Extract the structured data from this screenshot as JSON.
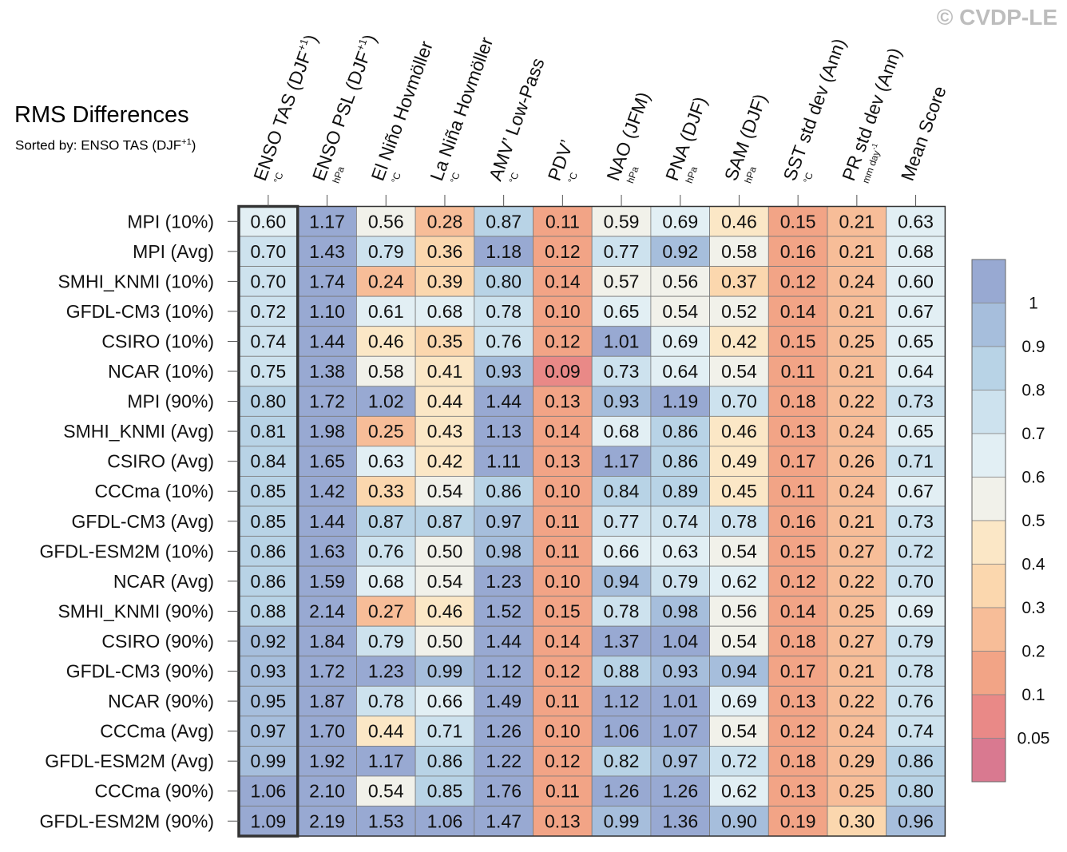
{
  "copyright": "© CVDP-LE",
  "title": "RMS Differences",
  "subtitle_prefix": "Sorted by: ENSO TAS (DJF",
  "subtitle_sup": "+1",
  "subtitle_suffix": ")",
  "chart_data": {
    "type": "heatmap",
    "title": "RMS Differences",
    "sorted_by": "ENSO TAS (DJF+1)",
    "columns": [
      {
        "label": "ENSO TAS (DJF",
        "sup": "+1",
        "close": ")",
        "unit": "°C"
      },
      {
        "label": "ENSO PSL (DJF",
        "sup": "+1",
        "close": ")",
        "unit": "hPa"
      },
      {
        "label": "El Niño Hovmöller",
        "unit": "°C"
      },
      {
        "label": "La Niña Hovmöller",
        "unit": "°C"
      },
      {
        "label": "AMV’ Low-Pass",
        "unit": "°C"
      },
      {
        "label": "PDV’",
        "unit": "°C"
      },
      {
        "label": "NAO (JFM)",
        "unit": "hPa"
      },
      {
        "label": "PNA (DJF)",
        "unit": "hPa"
      },
      {
        "label": "SAM (DJF)",
        "unit": "hPa"
      },
      {
        "label": "SST std dev (Ann)",
        "unit": "°C"
      },
      {
        "label": "PR std dev (Ann)",
        "unit": "mm day",
        "unit_sup": "-1"
      },
      {
        "label": "Mean Score",
        "unit": ""
      }
    ],
    "rows": [
      "MPI (10%)",
      "MPI (Avg)",
      "SMHI_KNMI (10%)",
      "GFDL-CM3 (10%)",
      "CSIRO (10%)",
      "NCAR (10%)",
      "MPI (90%)",
      "SMHI_KNMI (Avg)",
      "CSIRO (Avg)",
      "CCCma (10%)",
      "GFDL-CM3 (Avg)",
      "GFDL-ESM2M (10%)",
      "NCAR (Avg)",
      "SMHI_KNMI (90%)",
      "CSIRO (90%)",
      "GFDL-CM3 (90%)",
      "NCAR (90%)",
      "CCCma (Avg)",
      "GFDL-ESM2M (Avg)",
      "CCCma (90%)",
      "GFDL-ESM2M (90%)"
    ],
    "values": [
      [
        "0.60",
        "1.17",
        "0.56",
        "0.28",
        "0.87",
        "0.11",
        "0.59",
        "0.69",
        "0.46",
        "0.15",
        "0.21",
        "0.63"
      ],
      [
        "0.70",
        "1.43",
        "0.79",
        "0.36",
        "1.18",
        "0.12",
        "0.77",
        "0.92",
        "0.58",
        "0.16",
        "0.21",
        "0.68"
      ],
      [
        "0.70",
        "1.74",
        "0.24",
        "0.39",
        "0.80",
        "0.14",
        "0.57",
        "0.56",
        "0.37",
        "0.12",
        "0.24",
        "0.60"
      ],
      [
        "0.72",
        "1.10",
        "0.61",
        "0.68",
        "0.78",
        "0.10",
        "0.65",
        "0.54",
        "0.52",
        "0.14",
        "0.21",
        "0.67"
      ],
      [
        "0.74",
        "1.44",
        "0.46",
        "0.35",
        "0.76",
        "0.12",
        "1.01",
        "0.69",
        "0.42",
        "0.15",
        "0.25",
        "0.65"
      ],
      [
        "0.75",
        "1.38",
        "0.58",
        "0.41",
        "0.93",
        "0.09",
        "0.73",
        "0.64",
        "0.54",
        "0.11",
        "0.21",
        "0.64"
      ],
      [
        "0.80",
        "1.72",
        "1.02",
        "0.44",
        "1.44",
        "0.13",
        "0.93",
        "1.19",
        "0.70",
        "0.18",
        "0.22",
        "0.73"
      ],
      [
        "0.81",
        "1.98",
        "0.25",
        "0.43",
        "1.13",
        "0.14",
        "0.68",
        "0.86",
        "0.46",
        "0.13",
        "0.24",
        "0.65"
      ],
      [
        "0.84",
        "1.65",
        "0.63",
        "0.42",
        "1.11",
        "0.13",
        "1.17",
        "0.86",
        "0.49",
        "0.17",
        "0.26",
        "0.71"
      ],
      [
        "0.85",
        "1.42",
        "0.33",
        "0.54",
        "0.86",
        "0.10",
        "0.84",
        "0.89",
        "0.45",
        "0.11",
        "0.24",
        "0.67"
      ],
      [
        "0.85",
        "1.44",
        "0.87",
        "0.87",
        "0.97",
        "0.11",
        "0.77",
        "0.74",
        "0.78",
        "0.16",
        "0.21",
        "0.73"
      ],
      [
        "0.86",
        "1.63",
        "0.76",
        "0.50",
        "0.98",
        "0.11",
        "0.66",
        "0.63",
        "0.54",
        "0.15",
        "0.27",
        "0.72"
      ],
      [
        "0.86",
        "1.59",
        "0.68",
        "0.54",
        "1.23",
        "0.10",
        "0.94",
        "0.79",
        "0.62",
        "0.12",
        "0.22",
        "0.70"
      ],
      [
        "0.88",
        "2.14",
        "0.27",
        "0.46",
        "1.52",
        "0.15",
        "0.78",
        "0.98",
        "0.56",
        "0.14",
        "0.25",
        "0.69"
      ],
      [
        "0.92",
        "1.84",
        "0.79",
        "0.50",
        "1.44",
        "0.14",
        "1.37",
        "1.04",
        "0.54",
        "0.18",
        "0.27",
        "0.79"
      ],
      [
        "0.93",
        "1.72",
        "1.23",
        "0.99",
        "1.12",
        "0.12",
        "0.88",
        "0.93",
        "0.94",
        "0.17",
        "0.21",
        "0.78"
      ],
      [
        "0.95",
        "1.87",
        "0.78",
        "0.66",
        "1.49",
        "0.11",
        "1.12",
        "1.01",
        "0.69",
        "0.13",
        "0.22",
        "0.76"
      ],
      [
        "0.97",
        "1.70",
        "0.44",
        "0.71",
        "1.26",
        "0.10",
        "1.06",
        "1.07",
        "0.54",
        "0.12",
        "0.24",
        "0.74"
      ],
      [
        "0.99",
        "1.92",
        "1.17",
        "0.86",
        "1.22",
        "0.12",
        "0.82",
        "0.97",
        "0.72",
        "0.18",
        "0.29",
        "0.86"
      ],
      [
        "1.06",
        "2.10",
        "0.54",
        "0.85",
        "1.76",
        "0.11",
        "1.26",
        "1.26",
        "0.62",
        "0.13",
        "0.25",
        "0.80"
      ],
      [
        "1.09",
        "2.19",
        "1.53",
        "1.06",
        "1.47",
        "0.13",
        "0.99",
        "1.36",
        "0.90",
        "0.19",
        "0.30",
        "0.96"
      ]
    ],
    "highlighted_column": 0,
    "colorbar": {
      "levels": [
        "1",
        "0.9",
        "0.8",
        "0.7",
        "0.6",
        "0.5",
        "0.4",
        "0.3",
        "0.2",
        "0.1",
        "0.05"
      ],
      "colors": [
        "#98a9d2",
        "#a6bedc",
        "#b8d3e6",
        "#cde2ee",
        "#e2eff4",
        "#f1f1ea",
        "#fbe7c6",
        "#fbd7ae",
        "#f7bd98",
        "#f2a486",
        "#e98987",
        "#d97990"
      ]
    }
  }
}
